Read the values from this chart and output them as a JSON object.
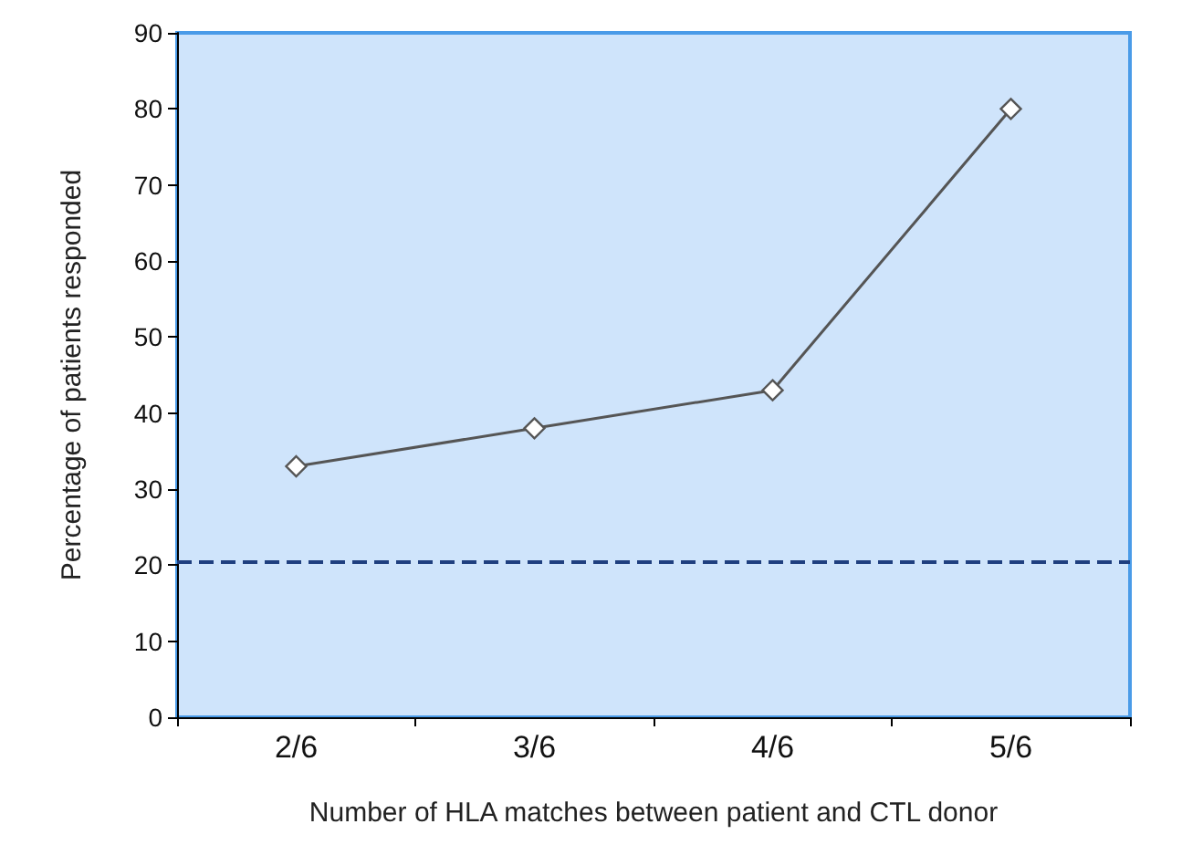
{
  "chart_data": {
    "type": "line",
    "xlabel": "Number of HLA matches between patient and CTL donor",
    "ylabel": "Percentage of patients responded",
    "categories": [
      "2/6",
      "3/6",
      "4/6",
      "5/6"
    ],
    "series": [
      {
        "color": "#555555",
        "values": [
          33,
          38,
          43,
          80
        ]
      }
    ],
    "ylim": [
      0,
      90
    ],
    "yticks": [
      0,
      10,
      20,
      30,
      40,
      50,
      60,
      70,
      80,
      90
    ],
    "marker": "diamond",
    "line_style": "solid",
    "grid": false,
    "ref_lines": [
      {
        "axis": "y",
        "value": 20.5,
        "color": "#1f3f7f",
        "line_style": "dashed"
      }
    ]
  }
}
